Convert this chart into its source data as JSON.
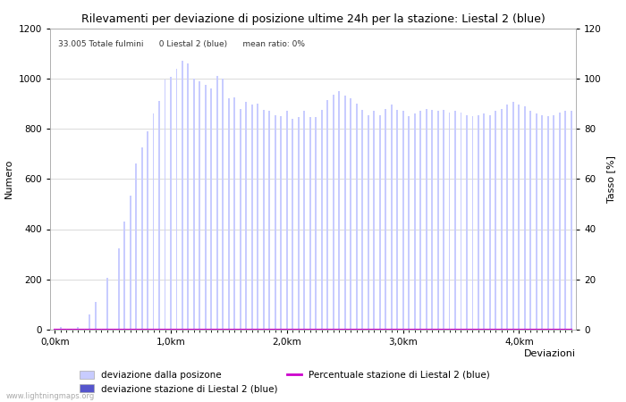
{
  "title": "Rilevamenti per deviazione di posizione ultime 24h per la stazione: Liestal 2 (blue)",
  "subtitle": "33.005 Totale fulmini      0 Liestal 2 (blue)      mean ratio: 0%",
  "xlabel": "Deviazioni",
  "ylabel_left": "Numero",
  "ylabel_right": "Tasso [%]",
  "xtick_labels": [
    "0,0km",
    "1,0km",
    "2,0km",
    "3,0km",
    "4,0km"
  ],
  "xtick_positions": [
    0,
    20,
    40,
    60,
    80
  ],
  "ylim_left": [
    0,
    1200
  ],
  "ylim_right": [
    0,
    120
  ],
  "yticks_left": [
    0,
    200,
    400,
    600,
    800,
    1000,
    1200
  ],
  "yticks_right": [
    0,
    20,
    40,
    60,
    80,
    100,
    120
  ],
  "bar_color_light": "#c8ccff",
  "bar_color_dark": "#5555cc",
  "line_color": "#cc00cc",
  "background_color": "#ffffff",
  "watermark": "www.lightningmaps.org",
  "bar_values": [
    5,
    10,
    5,
    5,
    10,
    5,
    60,
    110,
    5,
    205,
    5,
    325,
    430,
    535,
    660,
    725,
    790,
    860,
    910,
    995,
    1005,
    1040,
    1070,
    1060,
    1000,
    990,
    975,
    960,
    1010,
    1000,
    920,
    925,
    880,
    905,
    895,
    900,
    875,
    870,
    855,
    850,
    870,
    840,
    848,
    870,
    845,
    845,
    875,
    915,
    935,
    950,
    930,
    920,
    900,
    875,
    855,
    870,
    855,
    880,
    895,
    875,
    870,
    850,
    860,
    870,
    880,
    875,
    870,
    875,
    865,
    870,
    865,
    855,
    850,
    855,
    860,
    855,
    870,
    880,
    895,
    905,
    895,
    890,
    870,
    860,
    855,
    850,
    855,
    865,
    870,
    870
  ],
  "station_bar_values": [
    0,
    0,
    0,
    0,
    0,
    0,
    0,
    0,
    0,
    0,
    0,
    0,
    0,
    0,
    0,
    0,
    0,
    0,
    0,
    0,
    0,
    0,
    0,
    0,
    0,
    0,
    0,
    0,
    0,
    0,
    0,
    0,
    0,
    0,
    0,
    0,
    0,
    0,
    0,
    0,
    0,
    0,
    0,
    0,
    0,
    0,
    0,
    0,
    0,
    0,
    0,
    0,
    0,
    0,
    0,
    0,
    0,
    0,
    0,
    0,
    0,
    0,
    0,
    0,
    0,
    0,
    0,
    0,
    0,
    0,
    0,
    0,
    0,
    0,
    0,
    0,
    0,
    0,
    0,
    0,
    0,
    0,
    0,
    0,
    0,
    0,
    0,
    0,
    0,
    0
  ],
  "line_values": [
    0,
    0,
    0,
    0,
    0,
    0,
    0,
    0,
    0,
    0,
    0,
    0,
    0,
    0,
    0,
    0,
    0,
    0,
    0,
    0,
    0,
    0,
    0,
    0,
    0,
    0,
    0,
    0,
    0,
    0,
    0,
    0,
    0,
    0,
    0,
    0,
    0,
    0,
    0,
    0,
    0,
    0,
    0,
    0,
    0,
    0,
    0,
    0,
    0,
    0,
    0,
    0,
    0,
    0,
    0,
    0,
    0,
    0,
    0,
    0,
    0,
    0,
    0,
    0,
    0,
    0,
    0,
    0,
    0,
    0,
    0,
    0,
    0,
    0,
    0,
    0,
    0,
    0,
    0,
    0,
    0,
    0,
    0,
    0,
    0,
    0,
    0,
    0,
    0,
    0
  ],
  "n_bars": 90,
  "bar_width": 0.3,
  "figsize": [
    7.0,
    4.5
  ],
  "title_fontsize": 9,
  "label_fontsize": 8,
  "tick_fontsize": 7.5,
  "legend_fontsize": 7.5
}
